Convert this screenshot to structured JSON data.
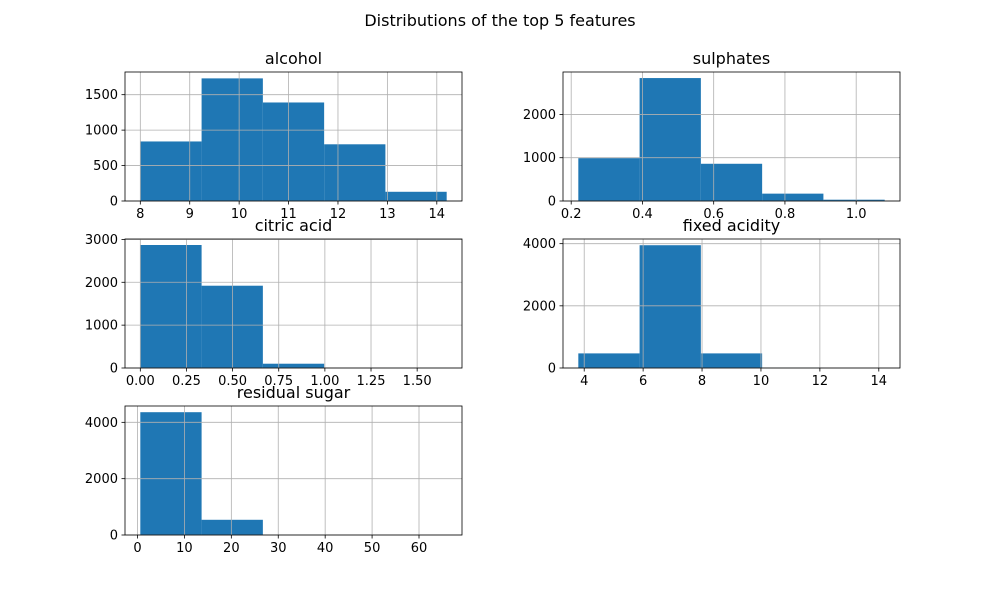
{
  "suptitle": "Distributions of the top 5 features",
  "colors": {
    "bar": "#1f77b4",
    "grid": "#b0b0b0",
    "axis": "#000000"
  },
  "chart_data": [
    {
      "type": "bar",
      "title": "alcohol",
      "bin_edges": [
        8.0,
        9.24,
        10.48,
        11.72,
        12.96,
        14.2
      ],
      "values": [
        840,
        1730,
        1390,
        800,
        130
      ],
      "xlim": [
        7.69,
        14.51
      ],
      "ylim": [
        0,
        1820
      ],
      "xticks": [
        8,
        9,
        10,
        11,
        12,
        13,
        14
      ],
      "yticks": [
        0,
        500,
        1000,
        1500
      ],
      "grid": true
    },
    {
      "type": "bar",
      "title": "sulphates",
      "bin_edges": [
        0.22,
        0.392,
        0.564,
        0.736,
        0.908,
        1.08
      ],
      "values": [
        990,
        2840,
        860,
        170,
        30
      ],
      "xlim": [
        0.177,
        1.123
      ],
      "ylim": [
        0,
        2980
      ],
      "xticks": [
        0.2,
        0.4,
        0.6,
        0.8,
        1.0
      ],
      "xtick_labels": [
        "0.2",
        "0.4",
        "0.6",
        "0.8",
        "1.0"
      ],
      "yticks": [
        0,
        1000,
        2000
      ],
      "grid": true
    },
    {
      "type": "bar",
      "title": "citric acid",
      "bin_edges": [
        0.0,
        0.332,
        0.664,
        0.996,
        1.328,
        1.66
      ],
      "values": [
        2870,
        1920,
        100,
        3,
        1
      ],
      "xlim": [
        -0.083,
        1.743
      ],
      "ylim": [
        0,
        3010
      ],
      "xticks": [
        0.0,
        0.25,
        0.5,
        0.75,
        1.0,
        1.25,
        1.5
      ],
      "xtick_labels": [
        "0.00",
        "0.25",
        "0.50",
        "0.75",
        "1.00",
        "1.25",
        "1.50"
      ],
      "yticks": [
        0,
        1000,
        2000,
        3000
      ],
      "grid": true
    },
    {
      "type": "bar",
      "title": "fixed acidity",
      "bin_edges": [
        3.8,
        5.88,
        7.96,
        10.04,
        12.12,
        14.2
      ],
      "values": [
        470,
        3950,
        470,
        8,
        1
      ],
      "xlim": [
        3.28,
        14.72
      ],
      "ylim": [
        0,
        4150
      ],
      "xticks": [
        4,
        6,
        8,
        10,
        12,
        14
      ],
      "yticks": [
        0,
        2000,
        4000
      ],
      "grid": true
    },
    {
      "type": "bar",
      "title": "residual sugar",
      "bin_edges": [
        0.6,
        13.66,
        26.72,
        39.78,
        52.84,
        65.9
      ],
      "values": [
        4360,
        540,
        2,
        0,
        1
      ],
      "xlim": [
        -2.665,
        69.165
      ],
      "ylim": [
        0,
        4580
      ],
      "xticks": [
        0,
        10,
        20,
        30,
        40,
        50,
        60
      ],
      "yticks": [
        0,
        2000,
        4000
      ],
      "grid": true
    }
  ]
}
